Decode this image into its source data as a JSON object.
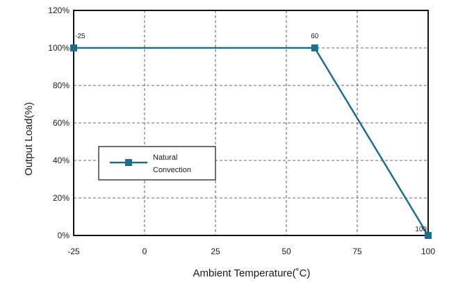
{
  "chart_data": {
    "type": "line",
    "title": "",
    "xlabel": "Ambient Temperature(˚C)",
    "ylabel": "Output Load(%)",
    "xlim": [
      -25,
      100
    ],
    "ylim": [
      0,
      120
    ],
    "x_ticks": [
      -25,
      0,
      25,
      50,
      75,
      100
    ],
    "x_tick_labels": [
      "-25",
      "0",
      "25",
      "50",
      "75",
      "100"
    ],
    "y_ticks": [
      0,
      20,
      40,
      60,
      80,
      100,
      120
    ],
    "y_tick_labels": [
      "0%",
      "20%",
      "40%",
      "60%",
      "80%",
      "100%",
      "120%"
    ],
    "grid": true,
    "legend_position": "middle-left",
    "series": [
      {
        "name": "Natural Convection",
        "color": "#1a6e8e",
        "x": [
          -25,
          60,
          100
        ],
        "y": [
          100,
          100,
          0
        ]
      }
    ],
    "point_labels": [
      {
        "x": -25,
        "y": 100,
        "text": "-25"
      },
      {
        "x": 60,
        "y": 100,
        "text": "60"
      },
      {
        "x": 100,
        "y": 0,
        "text": "100"
      }
    ],
    "legend": {
      "line1": "Natural",
      "line2": "Convection"
    }
  }
}
